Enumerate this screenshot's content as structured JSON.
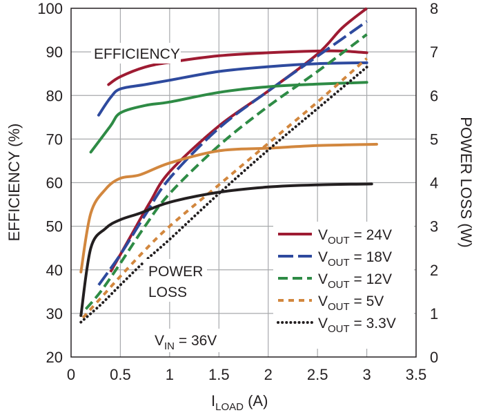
{
  "chart_data": {
    "type": "line",
    "title": "",
    "xlabel": {
      "main": "I",
      "sub": "LOAD",
      "unit": " (A)"
    },
    "ylabel_left": "EFFICIENCY (%)",
    "ylabel_right": "POWER LOSS (W)",
    "xlim": [
      0,
      3.5
    ],
    "ylim_left": [
      20,
      100
    ],
    "ylim_right": [
      0,
      8
    ],
    "x_ticks": [
      "0",
      "0.5",
      "1",
      "1.5",
      "2",
      "2.5",
      "3",
      "3.5"
    ],
    "y_left_ticks": [
      "20",
      "30",
      "40",
      "50",
      "60",
      "70",
      "80",
      "90",
      "100"
    ],
    "y_right_ticks": [
      "0",
      "1",
      "2",
      "3",
      "4",
      "5",
      "6",
      "7",
      "8"
    ],
    "grid": true,
    "legend_position": "bottom-right",
    "annotations": {
      "efficiency": "EFFICIENCY",
      "power_loss_line1": "POWER",
      "power_loss_line2": "LOSS",
      "vin_main": "V",
      "vin_sub": "IN",
      "vin_value": " = 36V"
    },
    "series": [
      {
        "name": "VOUT = 24V",
        "label_main": "V",
        "label_sub": "OUT",
        "label_value": " = 24V",
        "color": "#9e1b32",
        "dash": "solid",
        "efficiency": [
          [
            0.38,
            82.5
          ],
          [
            0.5,
            84.3
          ],
          [
            0.75,
            86.5
          ],
          [
            1.0,
            87.6
          ],
          [
            1.5,
            89.1
          ],
          [
            2.0,
            89.8
          ],
          [
            2.5,
            90.2
          ],
          [
            2.75,
            90.2
          ],
          [
            3.0,
            89.8
          ]
        ],
        "power_loss": [
          [
            0.4,
            1.95
          ],
          [
            0.6,
            2.75
          ],
          [
            0.8,
            3.55
          ],
          [
            1.0,
            4.25
          ],
          [
            1.5,
            5.3
          ],
          [
            2.0,
            6.1
          ],
          [
            2.5,
            6.95
          ],
          [
            2.75,
            7.55
          ],
          [
            3.0,
            8.0
          ]
        ]
      },
      {
        "name": "VOUT = 18V",
        "label_main": "V",
        "label_sub": "OUT",
        "label_value": " = 18V",
        "color": "#2e4a9e",
        "dash": "long",
        "efficiency": [
          [
            0.28,
            75.5
          ],
          [
            0.4,
            79.5
          ],
          [
            0.5,
            81.5
          ],
          [
            0.75,
            82.5
          ],
          [
            1.0,
            83.5
          ],
          [
            1.5,
            85.5
          ],
          [
            2.0,
            86.6
          ],
          [
            2.5,
            87.3
          ],
          [
            3.0,
            87.5
          ]
        ],
        "power_loss": [
          [
            0.28,
            1.65
          ],
          [
            0.5,
            2.35
          ],
          [
            0.75,
            3.25
          ],
          [
            1.0,
            4.1
          ],
          [
            1.5,
            5.25
          ],
          [
            2.0,
            6.1
          ],
          [
            2.5,
            6.9
          ],
          [
            2.75,
            7.3
          ],
          [
            3.0,
            7.7
          ]
        ]
      },
      {
        "name": "VOUT = 12V",
        "label_main": "V",
        "label_sub": "OUT",
        "label_value": " = 12V",
        "color": "#2e8b45",
        "dash": "medium",
        "efficiency": [
          [
            0.2,
            67.0
          ],
          [
            0.4,
            73.0
          ],
          [
            0.5,
            76.0
          ],
          [
            0.75,
            77.7
          ],
          [
            1.0,
            78.5
          ],
          [
            1.5,
            80.7
          ],
          [
            2.0,
            82.0
          ],
          [
            2.5,
            82.6
          ],
          [
            3.0,
            83.0
          ]
        ],
        "power_loss": [
          [
            0.15,
            1.1
          ],
          [
            0.3,
            1.5
          ],
          [
            0.5,
            2.15
          ],
          [
            0.75,
            3.0
          ],
          [
            1.0,
            3.75
          ],
          [
            1.5,
            4.85
          ],
          [
            2.0,
            5.75
          ],
          [
            2.5,
            6.55
          ],
          [
            3.0,
            7.4
          ]
        ]
      },
      {
        "name": "VOUT = 5V",
        "label_main": "V",
        "label_sub": "OUT",
        "label_value": " = 5V",
        "color": "#d2873e",
        "dash": "short",
        "efficiency": [
          [
            0.1,
            39.5
          ],
          [
            0.2,
            53.0
          ],
          [
            0.35,
            58.5
          ],
          [
            0.5,
            61.0
          ],
          [
            0.7,
            61.8
          ],
          [
            1.0,
            64.5
          ],
          [
            1.5,
            67.3
          ],
          [
            2.0,
            67.9
          ],
          [
            2.5,
            68.5
          ],
          [
            3.1,
            68.8
          ]
        ],
        "power_loss": [
          [
            0.12,
            0.9
          ],
          [
            0.3,
            1.35
          ],
          [
            0.5,
            1.85
          ],
          [
            0.75,
            2.45
          ],
          [
            1.0,
            3.0
          ],
          [
            1.5,
            3.95
          ],
          [
            2.0,
            4.9
          ],
          [
            2.5,
            5.85
          ],
          [
            3.0,
            6.85
          ]
        ]
      },
      {
        "name": "VOUT = 3.3V",
        "label_main": "V",
        "label_sub": "OUT",
        "label_value": " = 3.3V",
        "color": "#231f20",
        "dash": "dot",
        "efficiency": [
          [
            0.1,
            29.5
          ],
          [
            0.2,
            45.0
          ],
          [
            0.35,
            49.5
          ],
          [
            0.5,
            51.5
          ],
          [
            0.7,
            53.0
          ],
          [
            1.0,
            55.5
          ],
          [
            1.5,
            57.8
          ],
          [
            2.0,
            59.0
          ],
          [
            2.5,
            59.5
          ],
          [
            3.05,
            59.7
          ]
        ],
        "power_loss": [
          [
            0.1,
            0.8
          ],
          [
            0.3,
            1.2
          ],
          [
            0.5,
            1.65
          ],
          [
            0.75,
            2.2
          ],
          [
            1.0,
            2.7
          ],
          [
            1.5,
            3.75
          ],
          [
            2.0,
            4.75
          ],
          [
            2.5,
            5.7
          ],
          [
            3.0,
            6.65
          ]
        ]
      }
    ]
  }
}
